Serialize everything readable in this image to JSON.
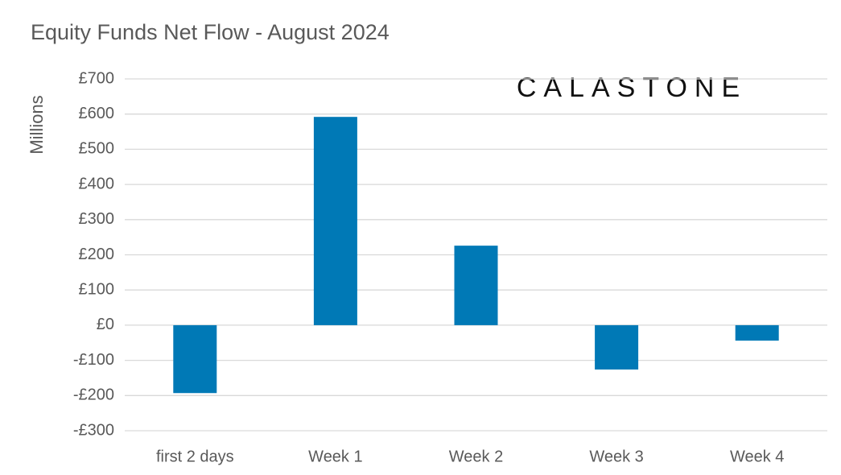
{
  "chart_data": {
    "type": "bar",
    "title": "Equity Funds Net Flow - August 2024",
    "logo": "CALASTONE",
    "y_label": "Millions",
    "categories": [
      "first 2 days",
      "Week 1",
      "Week 2",
      "Week 3",
      "Week 4"
    ],
    "values": [
      -193,
      592,
      226,
      -126,
      -44
    ],
    "color": "#0079b6",
    "ylim": [
      -300,
      700
    ],
    "yticks": [
      {
        "value": -300,
        "label": "-£300"
      },
      {
        "value": -200,
        "label": "-£200"
      },
      {
        "value": -100,
        "label": "-£100"
      },
      {
        "value": 0,
        "label": "£0"
      },
      {
        "value": 100,
        "label": "£100"
      },
      {
        "value": 200,
        "label": "£200"
      },
      {
        "value": 300,
        "label": "£300"
      },
      {
        "value": 400,
        "label": "£400"
      },
      {
        "value": 500,
        "label": "£500"
      },
      {
        "value": 600,
        "label": "£600"
      },
      {
        "value": 700,
        "label": "£700"
      }
    ],
    "grid": true
  }
}
